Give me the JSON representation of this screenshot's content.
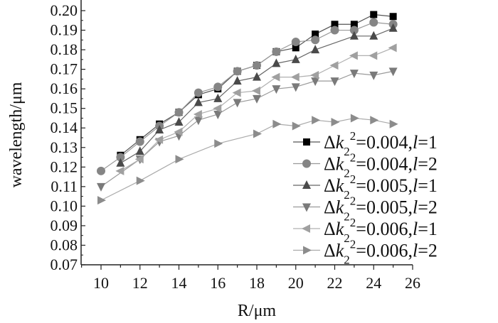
{
  "chart_data": {
    "type": "line",
    "title": "",
    "xlabel": "R/μm",
    "ylabel": "wavelength/μm",
    "xlim": [
      9,
      26
    ],
    "ylim": [
      0.07,
      0.2
    ],
    "xticks": [
      "10",
      "12",
      "14",
      "16",
      "18",
      "20",
      "22",
      "24",
      "26"
    ],
    "yticks": [
      "0.07",
      "0.08",
      "0.09",
      "0.10",
      "0.11",
      "0.12",
      "0.13",
      "0.14",
      "0.15",
      "0.16",
      "0.17",
      "0.18",
      "0.19",
      "0.20"
    ],
    "grid": false,
    "legend_position": "bottom-right",
    "series": [
      {
        "name": "Δk₂²=0.004, l=1",
        "label_prefix": "Δk",
        "label_value": "=0.004,",
        "label_l": "l",
        "label_lval": "=1",
        "marker": "square",
        "color": "#000000",
        "line": "#555555",
        "x": [
          11,
          12,
          13,
          14,
          15,
          16,
          17,
          18,
          19,
          20,
          21,
          22,
          23,
          24,
          25
        ],
        "y": [
          0.126,
          0.134,
          0.142,
          0.148,
          0.157,
          0.16,
          0.169,
          0.172,
          0.179,
          0.181,
          0.188,
          0.193,
          0.193,
          0.198,
          0.197
        ]
      },
      {
        "name": "Δk₂²=0.004, l=2",
        "label_prefix": "Δk",
        "label_value": "=0.004,",
        "label_l": "l",
        "label_lval": "=2",
        "marker": "circle",
        "color": "#858585",
        "line": "#999999",
        "x": [
          10,
          11,
          12,
          13,
          14,
          15,
          16,
          17,
          18,
          19,
          20,
          21,
          22,
          23,
          24,
          25
        ],
        "y": [
          0.118,
          0.125,
          0.133,
          0.141,
          0.148,
          0.158,
          0.161,
          0.169,
          0.172,
          0.179,
          0.184,
          0.185,
          0.19,
          0.19,
          0.194,
          0.193
        ]
      },
      {
        "name": "Δk₂²=0.005, l=1",
        "label_prefix": "Δk",
        "label_value": "=0.005,",
        "label_l": "l",
        "label_lval": "=1",
        "marker": "triangle-up",
        "color": "#4a4a4a",
        "line": "#666666",
        "x": [
          11,
          12,
          13,
          14,
          15,
          16,
          17,
          18,
          19,
          20,
          21,
          23,
          24,
          25
        ],
        "y": [
          0.122,
          0.128,
          0.139,
          0.143,
          0.153,
          0.155,
          0.164,
          0.166,
          0.173,
          0.175,
          0.18,
          0.187,
          0.187,
          0.191
        ]
      },
      {
        "name": "Δk₂²=0.005, l=2",
        "label_prefix": "Δk",
        "label_value": "=0.005,",
        "label_l": "l",
        "label_lval": "=2",
        "marker": "triangle-down",
        "color": "#7a7a7a",
        "line": "#9a9a9a",
        "x": [
          10,
          12,
          13,
          14,
          15,
          16,
          17,
          18,
          19,
          20,
          21,
          22,
          23,
          24,
          25
        ],
        "y": [
          0.11,
          0.124,
          0.133,
          0.136,
          0.144,
          0.147,
          0.153,
          0.155,
          0.16,
          0.161,
          0.164,
          0.164,
          0.168,
          0.167,
          0.169
        ]
      },
      {
        "name": "Δk₂²=0.006, l=1",
        "label_prefix": "Δk",
        "label_value": "=0.006,",
        "label_l": "l",
        "label_lval": "=1",
        "marker": "triangle-left",
        "color": "#a0a0a0",
        "line": "#b0b0b0",
        "x": [
          11,
          12,
          13,
          14,
          15,
          16,
          17,
          18,
          19,
          20,
          21,
          22,
          23,
          24,
          25
        ],
        "y": [
          0.118,
          0.124,
          0.134,
          0.138,
          0.147,
          0.15,
          0.158,
          0.159,
          0.166,
          0.166,
          0.167,
          0.172,
          0.177,
          0.177,
          0.181
        ]
      },
      {
        "name": "Δk₂²=0.006, l=2",
        "label_prefix": "Δk",
        "label_value": "=0.006,",
        "label_l": "l",
        "label_lval": "=2",
        "marker": "triangle-right",
        "color": "#8c8c8c",
        "line": "#aaaaaa",
        "x": [
          10,
          12,
          14,
          16,
          18,
          19,
          20,
          21,
          22,
          23,
          24,
          25
        ],
        "y": [
          0.103,
          0.113,
          0.124,
          0.132,
          0.137,
          0.142,
          0.141,
          0.144,
          0.143,
          0.145,
          0.144,
          0.142
        ]
      }
    ]
  }
}
